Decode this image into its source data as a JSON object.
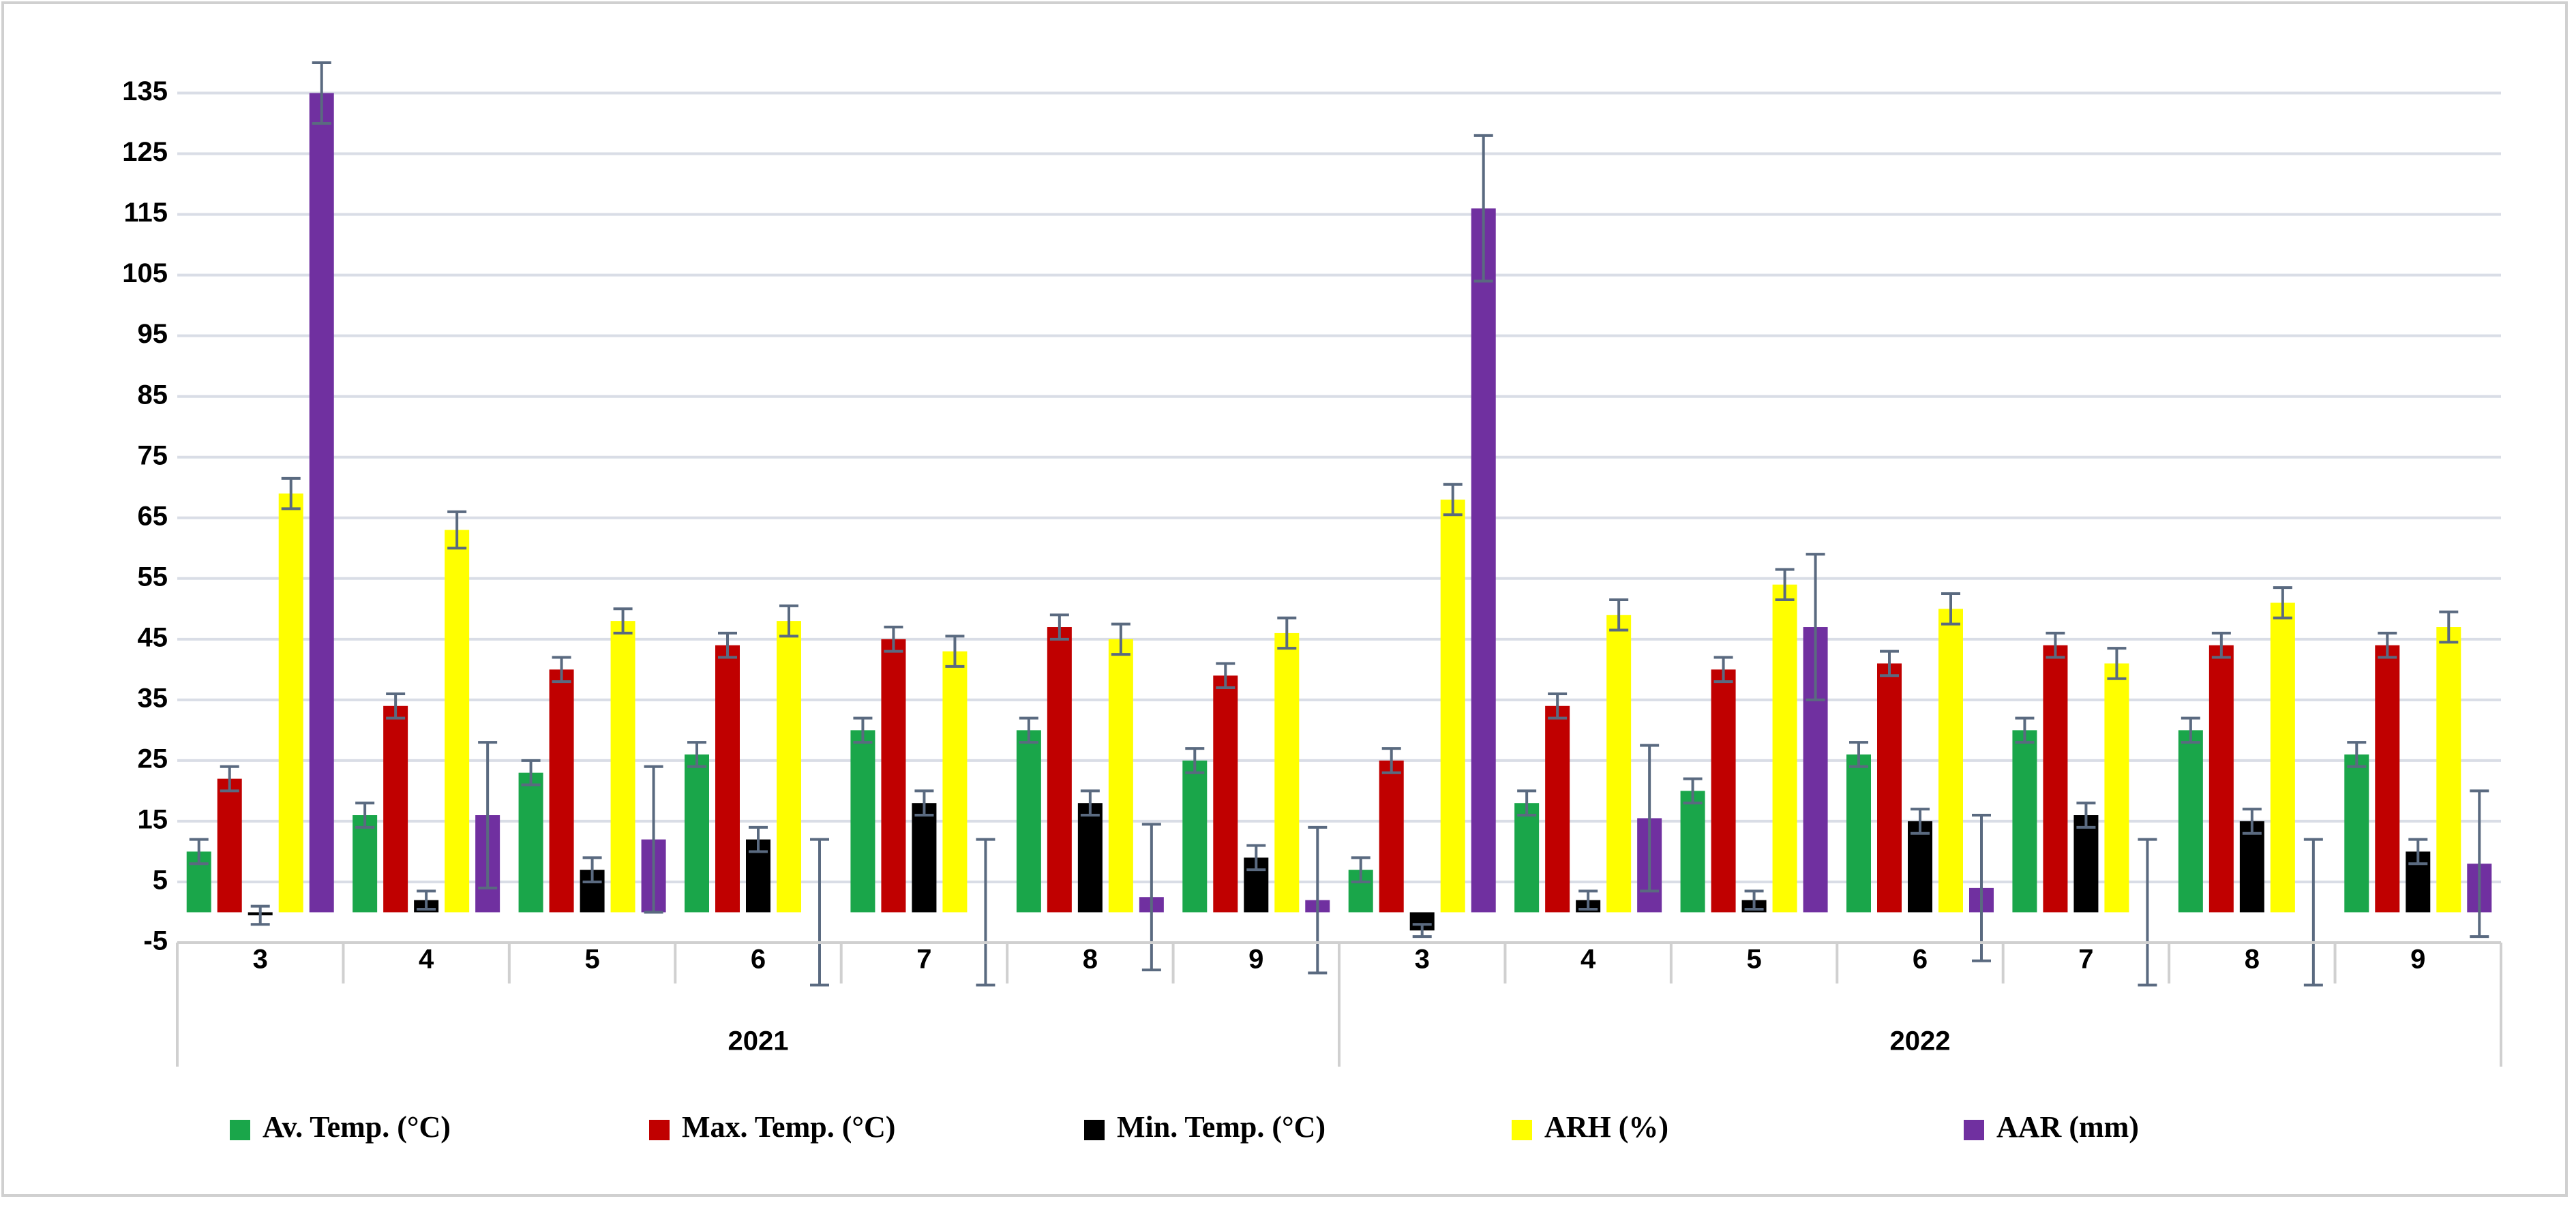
{
  "chart_data": {
    "type": "bar",
    "categories": [
      "3",
      "4",
      "5",
      "6",
      "7",
      "8",
      "9",
      "3",
      "4",
      "5",
      "6",
      "7",
      "8",
      "9"
    ],
    "group_labels": [
      "2021",
      "2022"
    ],
    "ylim": [
      -5,
      140
    ],
    "yticks": [
      -5,
      5,
      15,
      25,
      35,
      45,
      55,
      65,
      75,
      85,
      95,
      105,
      115,
      125,
      135
    ],
    "grid": true,
    "legend": "bottom",
    "series": [
      {
        "name": "Av. Temp. (°C)",
        "color": "#1aa64a",
        "values": [
          10,
          16,
          23,
          26,
          30,
          30,
          25,
          7,
          18,
          20,
          26,
          30,
          30,
          26
        ],
        "errors": [
          2,
          2,
          2,
          2,
          2,
          2,
          2,
          2,
          2,
          2,
          2,
          2,
          2,
          2
        ]
      },
      {
        "name": "Max. Temp. (°C)",
        "color": "#c00000",
        "values": [
          22,
          34,
          40,
          44,
          45,
          47,
          39,
          25,
          34,
          40,
          41,
          44,
          44,
          44
        ],
        "errors": [
          2,
          2,
          2,
          2,
          2,
          2,
          2,
          2,
          2,
          2,
          2,
          2,
          2,
          2
        ]
      },
      {
        "name": "Min. Temp. (°C)",
        "color": "#000000",
        "values": [
          -0.5,
          2,
          7,
          12,
          18,
          18,
          9,
          -3,
          2,
          2,
          15,
          16,
          15,
          10
        ],
        "errors": [
          1.5,
          1.5,
          2,
          2,
          2,
          2,
          2,
          1,
          1.5,
          1.5,
          2,
          2,
          2,
          2
        ]
      },
      {
        "name": "ARH (%)",
        "color": "#ffff00",
        "values": [
          69,
          63,
          48,
          48,
          43,
          45,
          46,
          68,
          49,
          54,
          50,
          41,
          51,
          47
        ],
        "errors": [
          2.5,
          3,
          2,
          2.5,
          2.5,
          2.5,
          2.5,
          2.5,
          2.5,
          2.5,
          2.5,
          2.5,
          2.5,
          2.5
        ]
      },
      {
        "name": "AAR (mm)",
        "color": "#7030a0",
        "values": [
          135,
          16,
          12,
          0,
          0,
          2.5,
          2,
          116,
          15.5,
          47,
          4,
          0,
          0,
          8
        ],
        "errors": [
          5,
          12,
          12,
          12,
          12,
          12,
          12,
          12,
          12,
          12,
          12,
          12,
          12,
          12
        ]
      }
    ]
  }
}
